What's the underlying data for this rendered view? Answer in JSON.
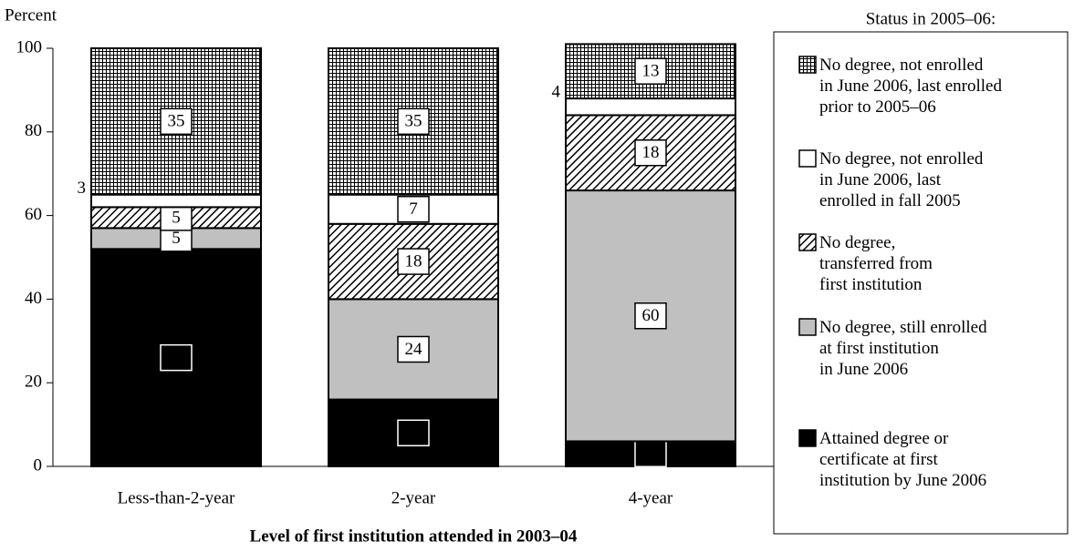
{
  "chart_data": {
    "type": "stacked_bar",
    "y_axis_title": "Percent",
    "x_axis_title": "Level of first institution attended in 2003–04",
    "legend_title": "Status in 2005–06:",
    "categories": [
      "Less-than-2-year",
      "2-year",
      "4-year"
    ],
    "series": [
      {
        "name": "Attained degree or\ncertificate at first\ninstitution by June 2006",
        "color": "#000000",
        "pattern": "solid",
        "values": [
          52,
          16,
          6
        ]
      },
      {
        "name": "No degree, still enrolled\nat first institution\nin June 2006",
        "color": "#c0c0c0",
        "pattern": "solid",
        "values": [
          5,
          24,
          60
        ]
      },
      {
        "name": "No degree,\ntransferred from\nfirst institution",
        "color": "#000000",
        "pattern": "hatch",
        "values": [
          5,
          18,
          18
        ]
      },
      {
        "name": "No degree, not enrolled\nin June 2006, last\nenrolled in fall 2005",
        "color": "#ffffff",
        "pattern": "solid",
        "values": [
          3,
          7,
          4
        ]
      },
      {
        "name": "No degree, not enrolled\nin June 2006, last enrolled\nprior to 2005–06",
        "color": "#000000",
        "pattern": "grid",
        "values": [
          35,
          35,
          13
        ]
      }
    ],
    "ylim": [
      0,
      100
    ],
    "yticks": [
      0,
      20,
      40,
      60,
      80,
      100
    ],
    "legend_position": "right"
  }
}
